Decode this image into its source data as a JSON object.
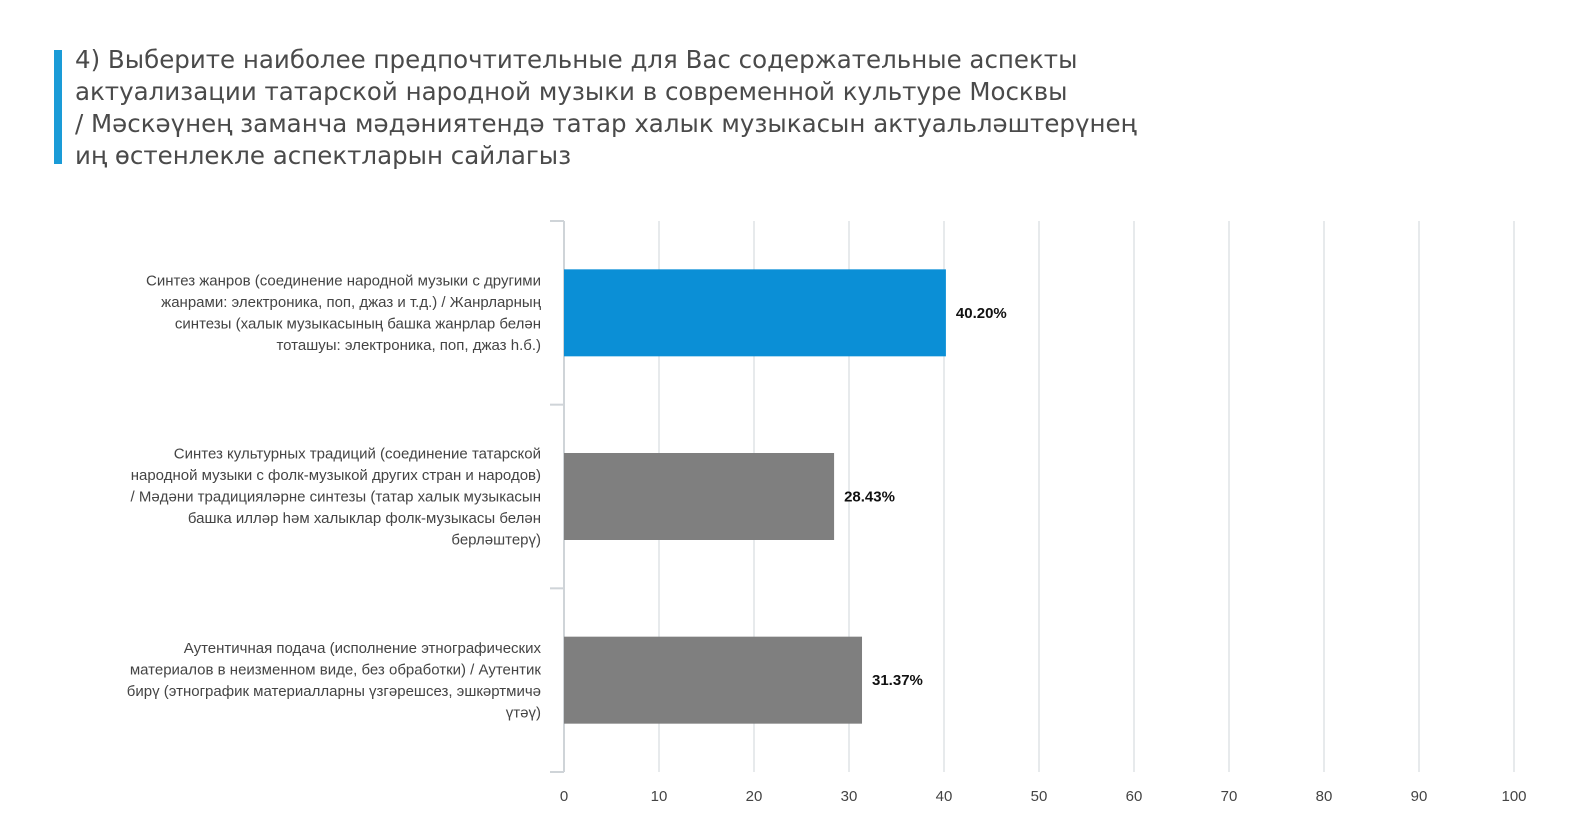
{
  "title": "4) Выберите наиболее предпочтительные для Вас содержательные аспекты\nактуализации татарской народной музыки в современной культуре Москвы\n/ Мәскәүнең заманча мәдәниятендә татар халык музыкасын актуальләштерүнең\nиң өстенлекле аспектларын сайлагыз",
  "colors": {
    "accent": "#1a9bd7",
    "highlight_bar": "#0b8fd6",
    "default_bar": "#7f7f7f",
    "grid": "#dfe3e6",
    "axis": "#cfd4d8"
  },
  "chart_data": {
    "type": "bar",
    "orientation": "horizontal",
    "categories": [
      [
        "Синтез жанров (соединение народной музыки с другими",
        "жанрами: электроника, поп, джаз и т.д.) / Жанрларның",
        "синтезы (халык музыкасының башка жанрлар белән",
        "тоташуы: электроника, поп, джаз һ.б.)"
      ],
      [
        "Синтез культурных традиций (соединение татарской",
        "народной музыки с фолк-музыкой других стран и народов)",
        "/ Мәдәни традицияләрне синтезы (татар халык музыкасын",
        "башка илләр һәм халыклар фолк-музыкасы белән",
        "берләштерү)"
      ],
      [
        "Аутентичная подача (исполнение этнографических",
        "материалов в неизменном виде, без обработки) / Аутентик",
        "бирү (этнографик материалларны үзгәрешсез, эшкәртмичә",
        "үтәү)"
      ]
    ],
    "values": [
      40.2,
      28.43,
      31.37
    ],
    "value_labels": [
      "40.20%",
      "28.43%",
      "31.37%"
    ],
    "highlighted_index": 0,
    "xlim": [
      0,
      100
    ],
    "xticks": [
      "0",
      "10",
      "20",
      "30",
      "40",
      "50",
      "60",
      "70",
      "80",
      "90",
      "100"
    ],
    "grid": true,
    "legend": "none"
  }
}
